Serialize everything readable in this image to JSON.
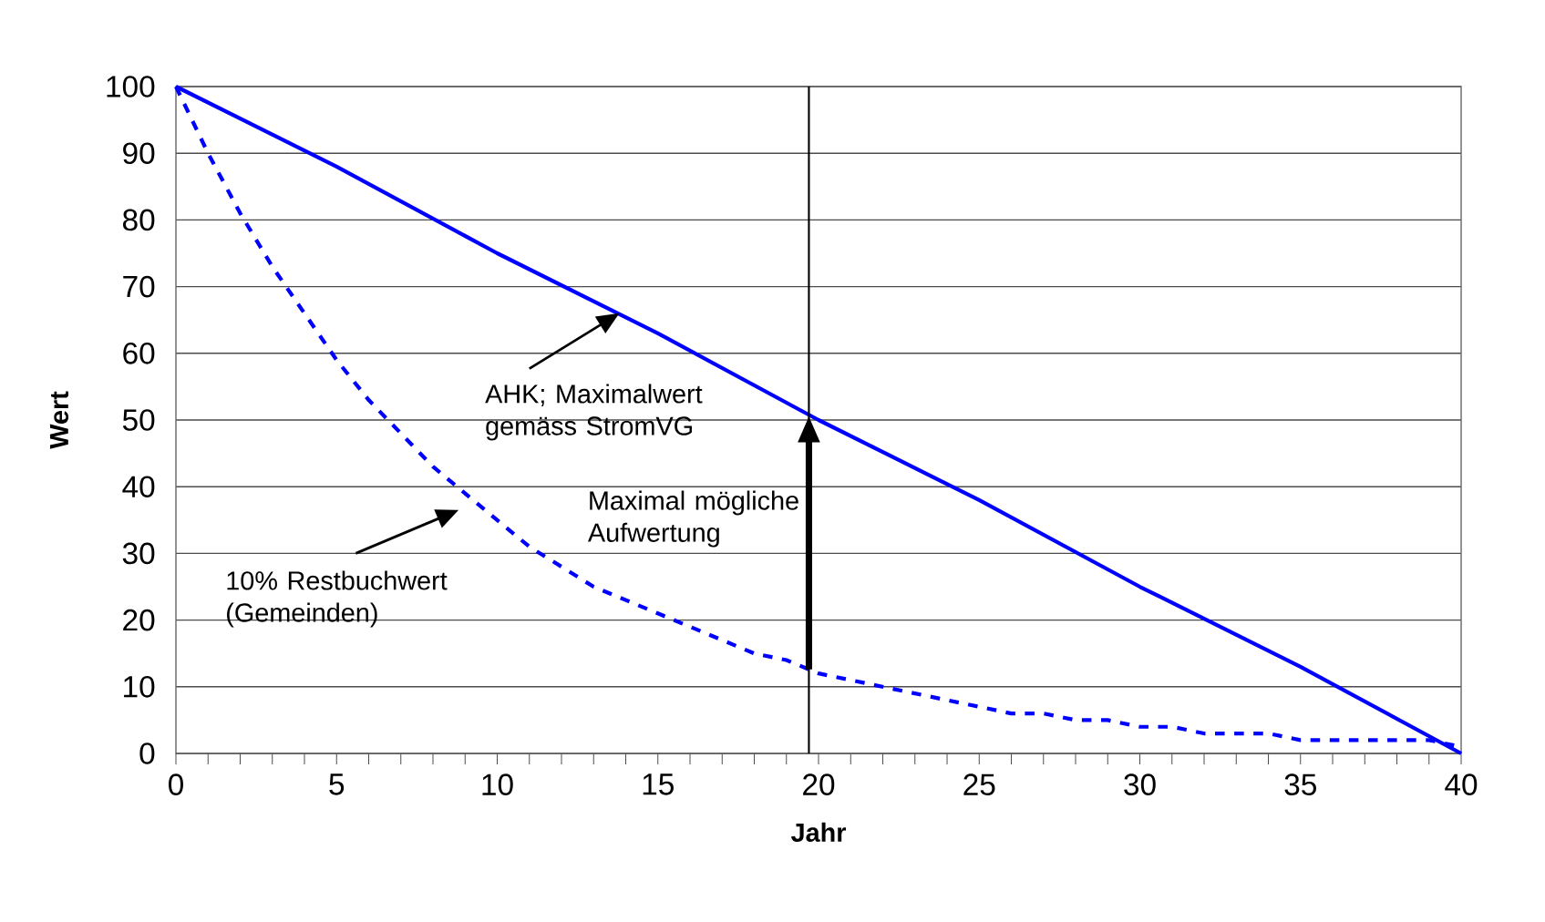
{
  "chart_data": {
    "type": "line",
    "xlabel": "Jahr",
    "ylabel": "Wert",
    "series": [
      {
        "color": "#0000ff",
        "line_style": "solid",
        "x": [
          0,
          5,
          10,
          15,
          20,
          25,
          30,
          35,
          40
        ],
        "values": [
          100,
          88,
          75,
          63,
          50,
          38,
          25,
          13,
          0
        ]
      },
      {
        "color": "#0000ff",
        "line_style": "dashed",
        "x": [
          0,
          1,
          2,
          3,
          4,
          5,
          6,
          7,
          8,
          9,
          10,
          11,
          12,
          13,
          14,
          15,
          16,
          17,
          18,
          19,
          20,
          21,
          22,
          23,
          24,
          25,
          26,
          27,
          28,
          29,
          30,
          31,
          32,
          33,
          34,
          35,
          36,
          37,
          38,
          39,
          40
        ],
        "values": [
          100,
          90,
          81,
          73,
          66,
          59,
          53,
          48,
          43,
          39,
          35,
          31,
          28,
          25,
          23,
          21,
          19,
          17,
          15,
          14,
          12,
          11,
          10,
          9,
          8,
          7,
          6,
          6,
          5,
          5,
          4,
          4,
          3,
          3,
          3,
          2,
          2,
          2,
          2,
          2,
          1
        ]
      }
    ],
    "xlim": [
      0,
      40
    ],
    "ylim": [
      0,
      100
    ],
    "xticks": [
      0,
      5,
      10,
      15,
      20,
      25,
      30,
      35,
      40
    ],
    "yticks": [
      0,
      10,
      20,
      30,
      40,
      50,
      60,
      70,
      80,
      90,
      100
    ],
    "grid": "y",
    "ref_lines": [
      {
        "axis": "x",
        "value": 19.7,
        "color": "#000000"
      }
    ],
    "annotations": [
      {
        "text": "AHK; Maximalwert gemäss StromVG",
        "x": 13.8,
        "y": 66
      },
      "10% Restbuchwert (Gemeinden)",
      {
        "text": "Maximal mögliche Aufwertung",
        "x": 19.7,
        "y": 50.5
      }
    ]
  }
}
